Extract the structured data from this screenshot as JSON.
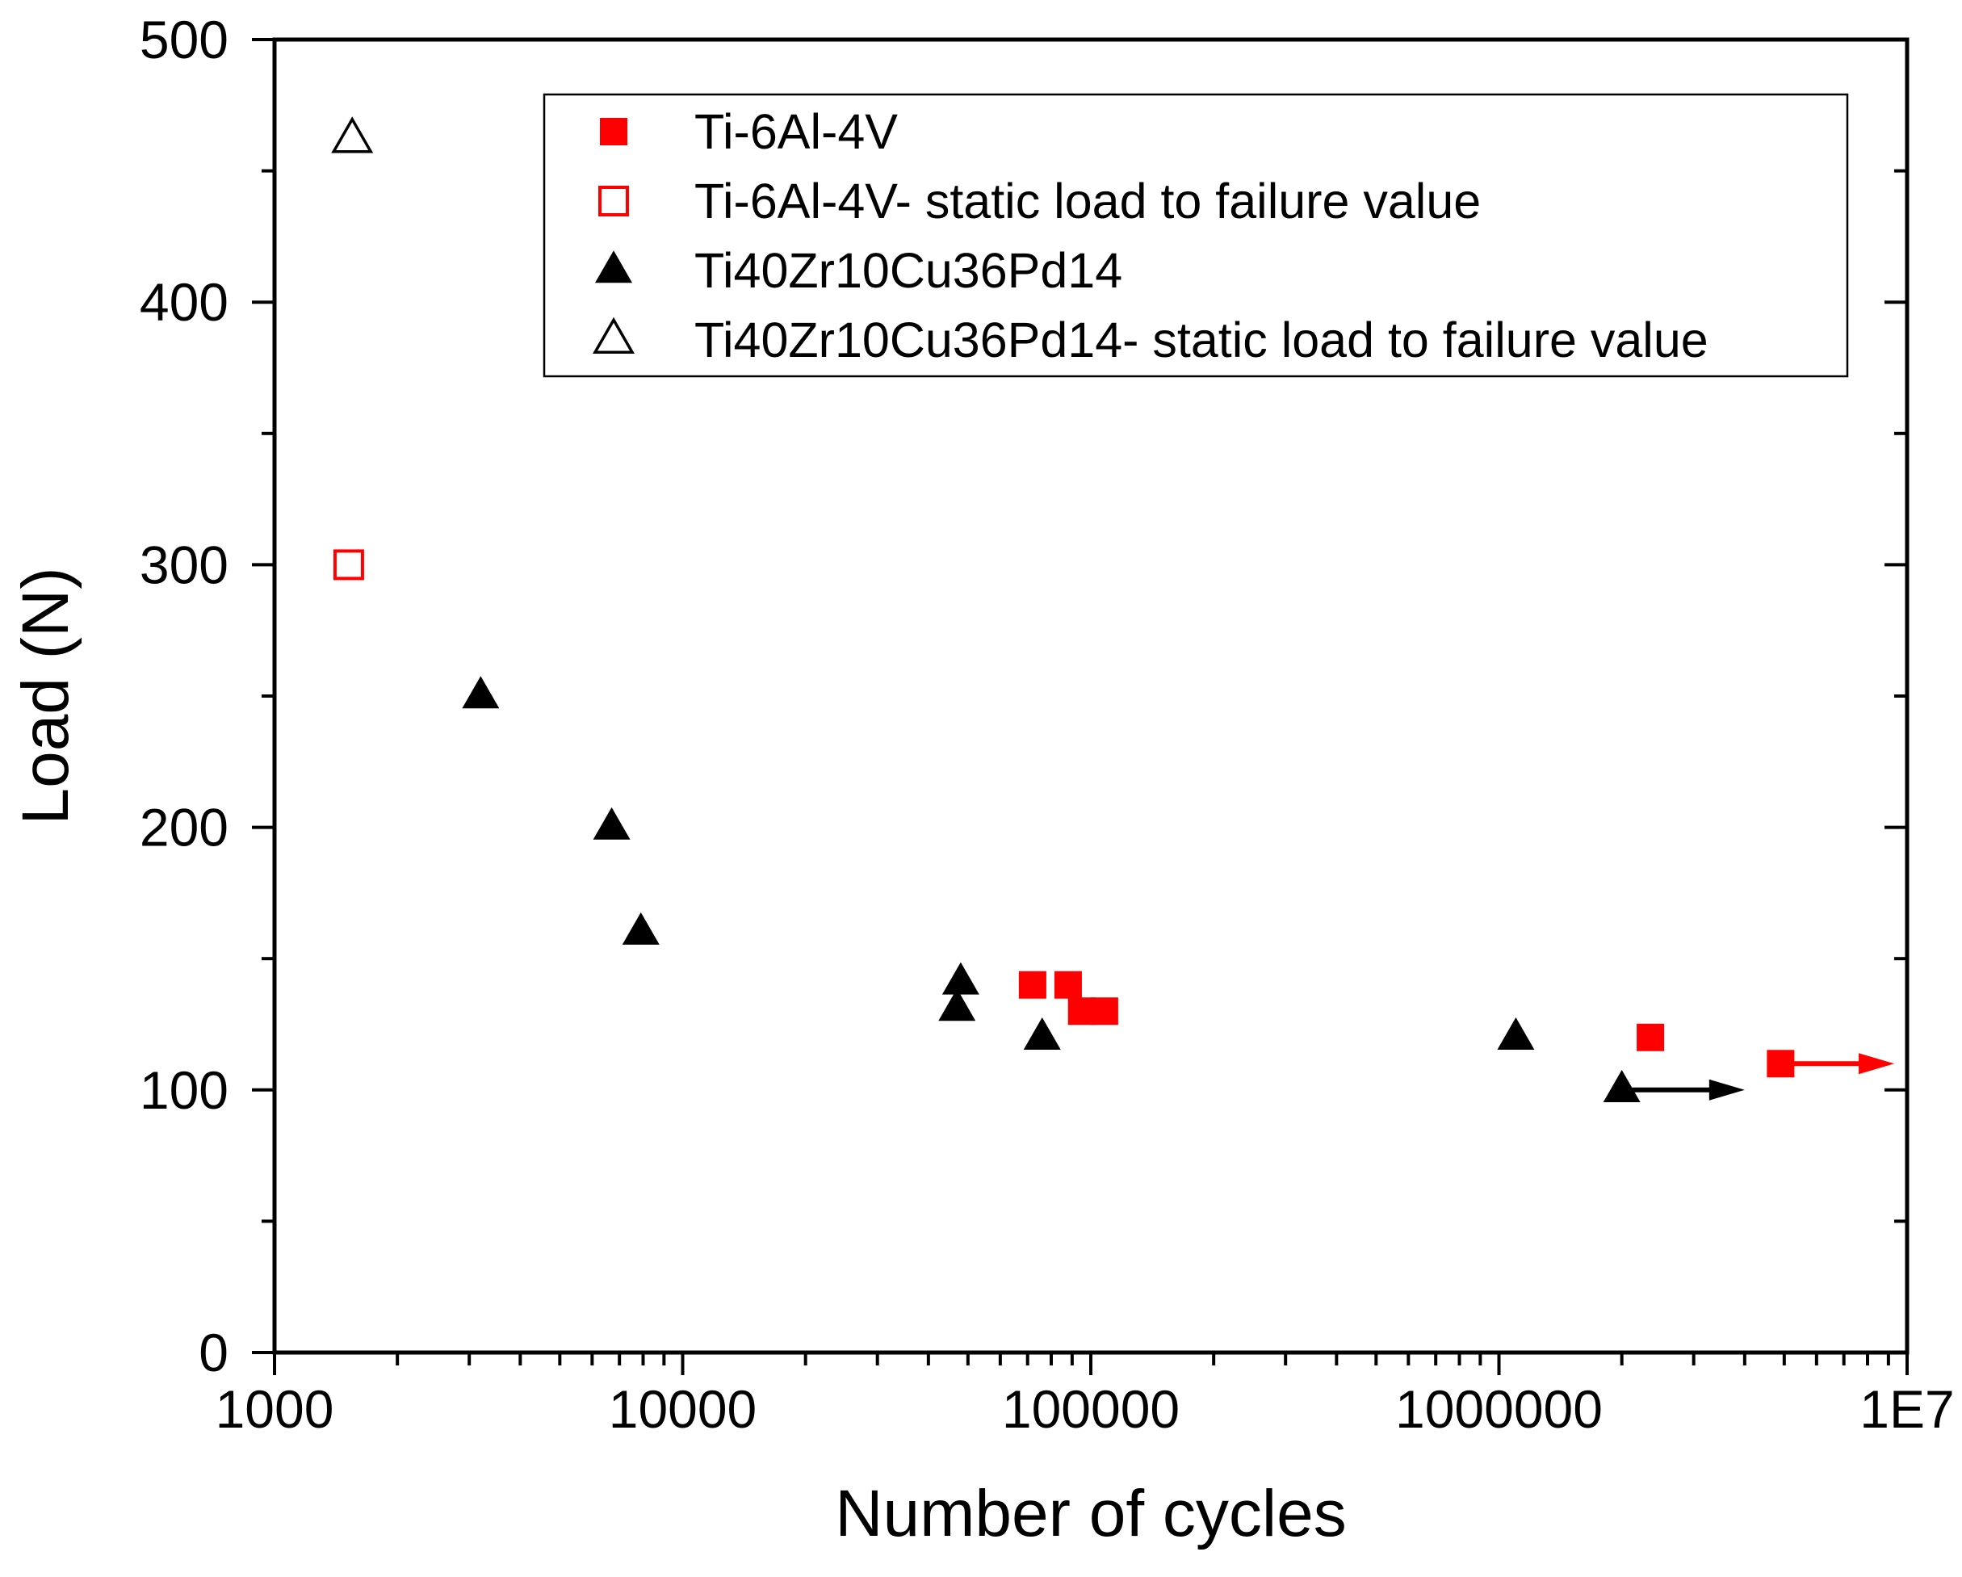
{
  "chart_data": {
    "type": "scatter",
    "xscale": "log",
    "xlabel": "Number of cycles",
    "ylabel": "Load (N)",
    "xlim": [
      1000,
      10000000
    ],
    "ylim": [
      0,
      500
    ],
    "x_tick_labels": [
      {
        "value": 1000,
        "label": "1000"
      },
      {
        "value": 10000,
        "label": "10000"
      },
      {
        "value": 100000,
        "label": "100000"
      },
      {
        "value": 1000000,
        "label": "1000000"
      },
      {
        "value": 10000000,
        "label": "1E7"
      }
    ],
    "y_tick_labels": [
      {
        "value": 0,
        "label": "0"
      },
      {
        "value": 100,
        "label": "100"
      },
      {
        "value": 200,
        "label": "200"
      },
      {
        "value": 300,
        "label": "300"
      },
      {
        "value": 400,
        "label": "400"
      },
      {
        "value": 500,
        "label": "500"
      }
    ],
    "legend_position": "top-right",
    "series": [
      {
        "name": "Ti-6Al-4V",
        "marker": "square",
        "filled": true,
        "color": "#ff0000",
        "points": [
          [
            72000,
            140
          ],
          [
            88000,
            140
          ],
          [
            95000,
            130
          ],
          [
            108000,
            130
          ],
          [
            2350000,
            120
          ],
          [
            4900000,
            110
          ]
        ]
      },
      {
        "name": "Ti-6Al-4V- static load to failure value",
        "marker": "square",
        "filled": false,
        "color": "#ff0000",
        "points": [
          [
            1520,
            300
          ]
        ]
      },
      {
        "name": "Ti40Zr10Cu36Pd14",
        "marker": "triangle",
        "filled": true,
        "color": "#000000",
        "points": [
          [
            3200,
            250
          ],
          [
            6700,
            200
          ],
          [
            7900,
            160
          ],
          [
            48000,
            141
          ],
          [
            47000,
            131
          ],
          [
            76000,
            120
          ],
          [
            1100000,
            120
          ],
          [
            2000000,
            100
          ]
        ]
      },
      {
        "name": "Ti40Zr10Cu36Pd14- static load to failure value",
        "marker": "triangle",
        "filled": false,
        "color": "#000000",
        "points": [
          [
            1550,
            462
          ]
        ]
      }
    ],
    "runout_arrows": [
      {
        "color": "#000000",
        "x_from": 2000000,
        "x_to": 4000000,
        "y": 100
      },
      {
        "color": "#ff0000",
        "x_from": 4900000,
        "x_to": 9300000,
        "y": 110
      }
    ]
  }
}
